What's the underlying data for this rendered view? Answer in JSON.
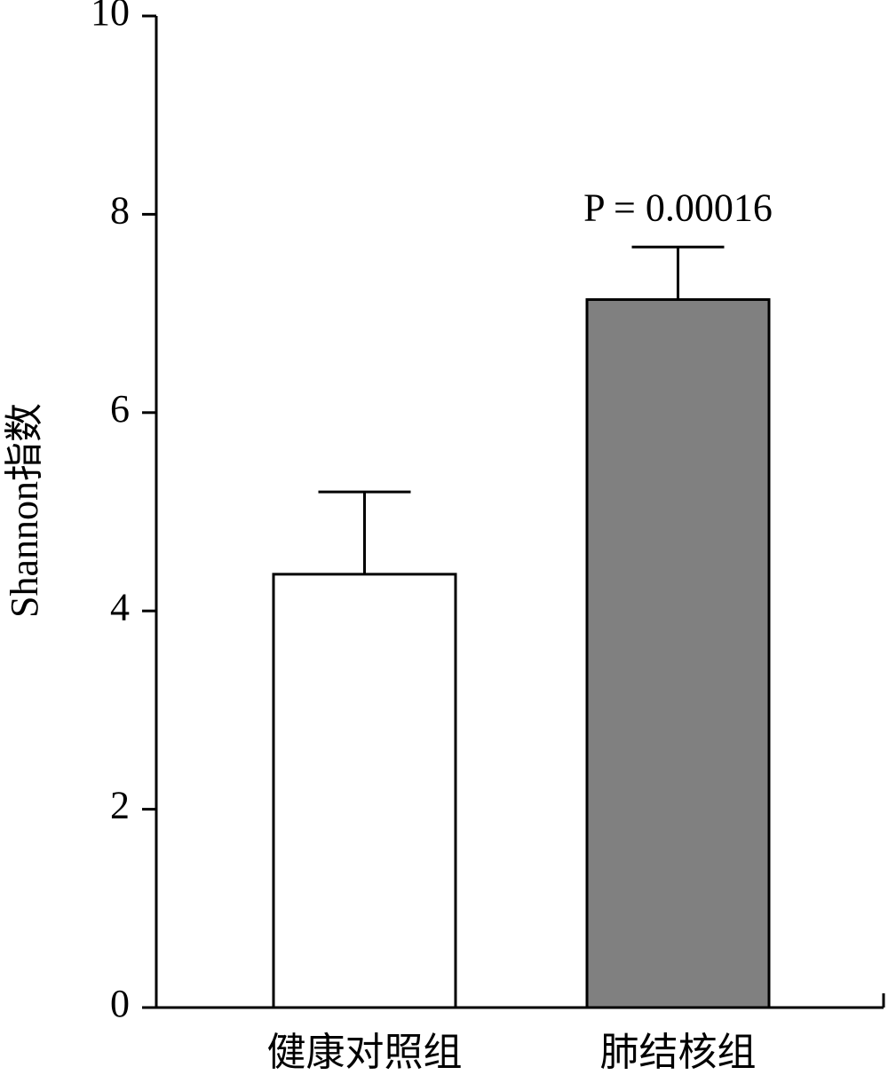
{
  "chart_data": {
    "type": "bar",
    "ylabel": "Shannon指数",
    "categories": [
      "健康对照组",
      "肺结核组"
    ],
    "values": [
      4.37,
      7.14
    ],
    "errors": [
      0.83,
      0.53
    ],
    "colors": [
      "#ffffff",
      "#808080"
    ],
    "annotation": "P = 0.00016",
    "ylim": [
      0,
      10
    ],
    "yticks": [
      0,
      2,
      4,
      6,
      8,
      10
    ],
    "grid": false
  }
}
